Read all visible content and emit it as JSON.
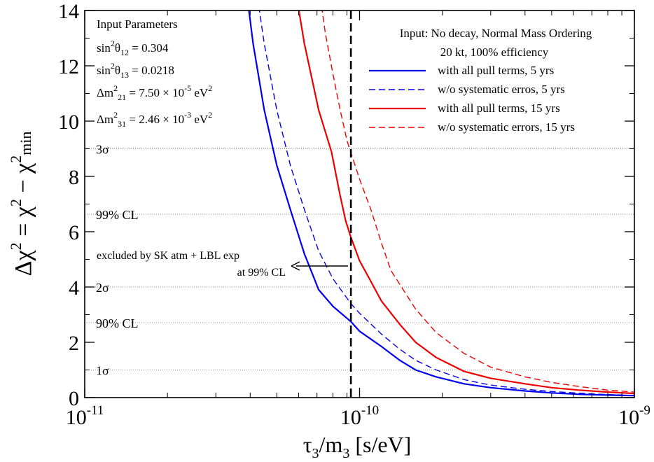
{
  "chart_data": {
    "type": "line",
    "xlabel": {
      "base": "τ",
      "sub1": "3",
      "mid": "/m",
      "sub2": "3",
      "unit": " [s/eV]"
    },
    "ylabel": {
      "a": "Δχ",
      "b": " = χ",
      "c": " − χ",
      "csub": "min",
      "sup": "2"
    },
    "xscale": "log",
    "xlim": [
      1e-11,
      1e-09
    ],
    "ylim": [
      0,
      14
    ],
    "x_ticks": [
      {
        "value": 1e-11,
        "base": "10",
        "exp": "-11"
      },
      {
        "value": 1e-10,
        "base": "10",
        "exp": "-10"
      },
      {
        "value": 1e-09,
        "base": "10",
        "exp": "-9"
      }
    ],
    "y_ticks": [
      {
        "value": 0,
        "label": "0"
      },
      {
        "value": 2,
        "label": "2"
      },
      {
        "value": 4,
        "label": "4"
      },
      {
        "value": 6,
        "label": "6"
      },
      {
        "value": 8,
        "label": "8"
      },
      {
        "value": 10,
        "label": "10"
      },
      {
        "value": 12,
        "label": "12"
      },
      {
        "value": 14,
        "label": "14"
      }
    ],
    "reference_lines": [
      {
        "y": 1.0,
        "label": "1σ"
      },
      {
        "y": 2.71,
        "label": "90% CL"
      },
      {
        "y": 4.0,
        "label": "2σ"
      },
      {
        "y": 6.63,
        "label": "99% CL"
      },
      {
        "y": 9.0,
        "label": "3σ"
      }
    ],
    "vertical_line": {
      "x": 9.3e-11,
      "color": "#000000",
      "style": "dashed"
    },
    "annotation": {
      "line1": "excluded by SK atm + LBL exp",
      "line2": "at 99% CL"
    },
    "parameters": {
      "title": "Input Parameters",
      "rows": [
        {
          "pre": "sin",
          "sup": "2",
          "sym": "θ",
          "sub": "12",
          "val": " = 0.304",
          "exp": "",
          "unit": ""
        },
        {
          "pre": "sin",
          "sup": "2",
          "sym": "θ",
          "sub": "13",
          "val": " = 0.0218",
          "exp": "",
          "unit": ""
        },
        {
          "pre": "Δm",
          "sup": "2",
          "sym": "",
          "sub": "21",
          "val": " = 7.50 × 10",
          "exp": "-5",
          "unit": " eV"
        },
        {
          "pre": "Δm",
          "sup": "2",
          "sym": "",
          "sub": "31",
          "val": " = 2.46 × 10",
          "exp": "-3",
          "unit": " eV"
        }
      ]
    },
    "legend_header": {
      "line1": "Input: No decay, Normal Mass Ordering",
      "line2": "20 kt, 100% efficiency"
    },
    "series": [
      {
        "name": "with all pull terms, 5 yrs",
        "color": "#0000ee",
        "dashed": false,
        "points": [
          [
            3.9e-11,
            14.5
          ],
          [
            4.1e-11,
            12.8
          ],
          [
            4.5e-11,
            10.4
          ],
          [
            5e-11,
            8.4
          ],
          [
            5.6e-11,
            6.8
          ],
          [
            6.3e-11,
            5.2
          ],
          [
            7.1e-11,
            3.9
          ],
          [
            8e-11,
            3.3
          ],
          [
            9.3e-11,
            2.75
          ],
          [
            1e-10,
            2.4
          ],
          [
            1.2e-10,
            1.85
          ],
          [
            1.4e-10,
            1.35
          ],
          [
            1.6e-10,
            1.0
          ],
          [
            1.9e-10,
            0.75
          ],
          [
            2.4e-10,
            0.5
          ],
          [
            3e-10,
            0.36
          ],
          [
            4e-10,
            0.24
          ],
          [
            5e-10,
            0.17
          ],
          [
            6.3e-10,
            0.12
          ],
          [
            8e-10,
            0.09
          ],
          [
            1e-09,
            0.07
          ]
        ]
      },
      {
        "name": "w/o systematic erros, 5 yrs",
        "color": "#0000ee",
        "dashed": true,
        "points": [
          [
            4.25e-11,
            14.5
          ],
          [
            4.5e-11,
            12.8
          ],
          [
            5e-11,
            10.4
          ],
          [
            5.6e-11,
            8.4
          ],
          [
            6.3e-11,
            6.8
          ],
          [
            7.1e-11,
            5.3
          ],
          [
            8e-11,
            4.3
          ],
          [
            9.3e-11,
            3.4
          ],
          [
            1e-10,
            3.05
          ],
          [
            1.2e-10,
            2.3
          ],
          [
            1.4e-10,
            1.75
          ],
          [
            1.6e-10,
            1.35
          ],
          [
            1.9e-10,
            1.0
          ],
          [
            2.4e-10,
            0.65
          ],
          [
            3e-10,
            0.45
          ],
          [
            4e-10,
            0.3
          ],
          [
            5e-10,
            0.22
          ],
          [
            6.3e-10,
            0.16
          ],
          [
            8e-10,
            0.11
          ],
          [
            1e-09,
            0.08
          ]
        ]
      },
      {
        "name": "with all pull terms, 15 yrs",
        "color": "#ee0000",
        "dashed": false,
        "points": [
          [
            5.9e-11,
            14.5
          ],
          [
            6.3e-11,
            12.8
          ],
          [
            7.1e-11,
            10.4
          ],
          [
            7.9e-11,
            8.9
          ],
          [
            8.5e-11,
            7.3
          ],
          [
            8.9e-11,
            6.4
          ],
          [
            9.3e-11,
            5.8
          ],
          [
            1e-10,
            4.95
          ],
          [
            1.1e-10,
            4.2
          ],
          [
            1.2e-10,
            3.5
          ],
          [
            1.4e-10,
            2.65
          ],
          [
            1.6e-10,
            2.0
          ],
          [
            1.9e-10,
            1.45
          ],
          [
            2.4e-10,
            0.95
          ],
          [
            3e-10,
            0.7
          ],
          [
            4e-10,
            0.5
          ],
          [
            5e-10,
            0.36
          ],
          [
            6.3e-10,
            0.27
          ],
          [
            8e-10,
            0.2
          ],
          [
            1e-09,
            0.15
          ]
        ]
      },
      {
        "name": "w/o systematic errors, 15 yrs",
        "color": "#ee0000",
        "dashed": true,
        "points": [
          [
            7.2e-11,
            14.5
          ],
          [
            7.5e-11,
            13.2
          ],
          [
            8e-11,
            11.7
          ],
          [
            8.5e-11,
            10.4
          ],
          [
            9e-11,
            9.3
          ],
          [
            1e-10,
            7.9
          ],
          [
            1.1e-10,
            6.8
          ],
          [
            1.2e-10,
            5.6
          ],
          [
            1.3e-10,
            4.6
          ],
          [
            1.4e-10,
            4.1
          ],
          [
            1.6e-10,
            3.2
          ],
          [
            1.9e-10,
            2.35
          ],
          [
            2.4e-10,
            1.6
          ],
          [
            3e-10,
            1.1
          ],
          [
            4e-10,
            0.75
          ],
          [
            5e-10,
            0.55
          ],
          [
            6.3e-10,
            0.4
          ],
          [
            8e-10,
            0.27
          ],
          [
            1e-09,
            0.2
          ]
        ]
      }
    ]
  }
}
